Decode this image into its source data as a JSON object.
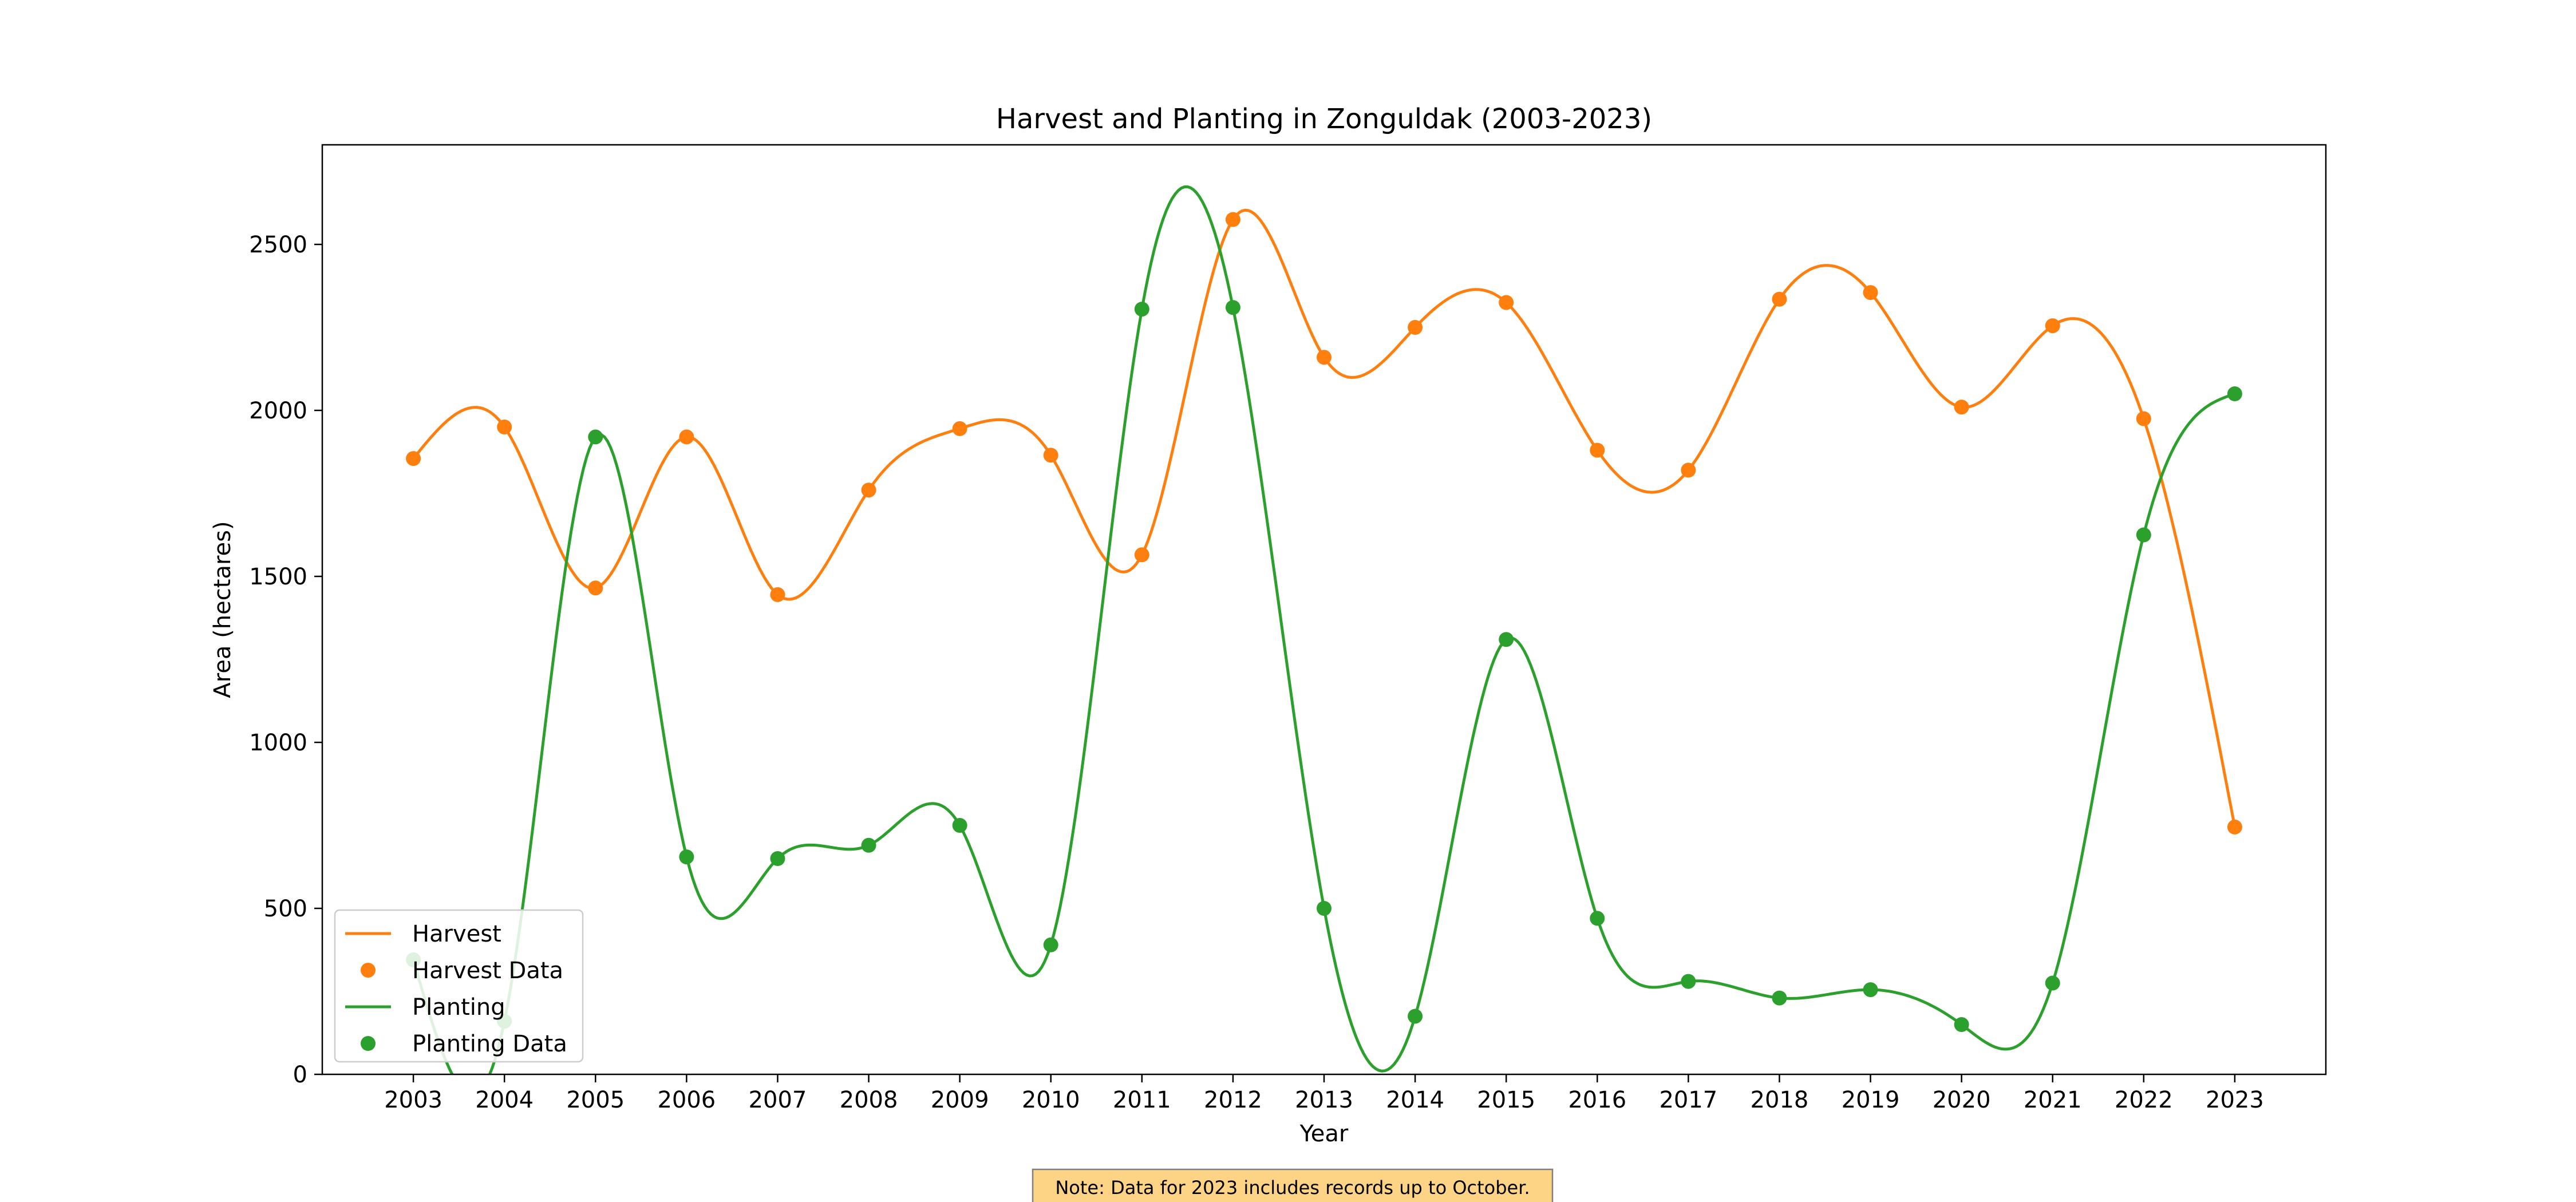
{
  "chart_data": {
    "type": "line",
    "title": "Harvest and Planting in Zonguldak (2003-2023)",
    "xlabel": "Year",
    "ylabel": "Area (hectares)",
    "ylim": [
      0,
      2800
    ],
    "yticks": [
      0,
      500,
      1000,
      1500,
      2000,
      2500
    ],
    "x": [
      2003,
      2004,
      2005,
      2006,
      2007,
      2008,
      2009,
      2010,
      2011,
      2012,
      2013,
      2014,
      2015,
      2016,
      2017,
      2018,
      2019,
      2020,
      2021,
      2022,
      2023
    ],
    "grid": false,
    "legend_position": "lower-left",
    "series": [
      {
        "name": "Harvest",
        "marker_name": "Harvest Data",
        "color": "#ff7f0e",
        "values": [
          1855,
          1950,
          1465,
          1920,
          1445,
          1760,
          1945,
          1865,
          1565,
          2575,
          2160,
          2250,
          2325,
          1880,
          1820,
          2335,
          2355,
          2010,
          2255,
          1975,
          745
        ]
      },
      {
        "name": "Planting",
        "marker_name": "Planting Data",
        "color": "#2ca02c",
        "values": [
          345,
          160,
          1920,
          655,
          650,
          690,
          750,
          390,
          2305,
          2310,
          500,
          175,
          1310,
          470,
          280,
          230,
          255,
          150,
          275,
          1625,
          2050
        ]
      }
    ],
    "annotation": "Note: Data for 2023 includes records up to October."
  }
}
